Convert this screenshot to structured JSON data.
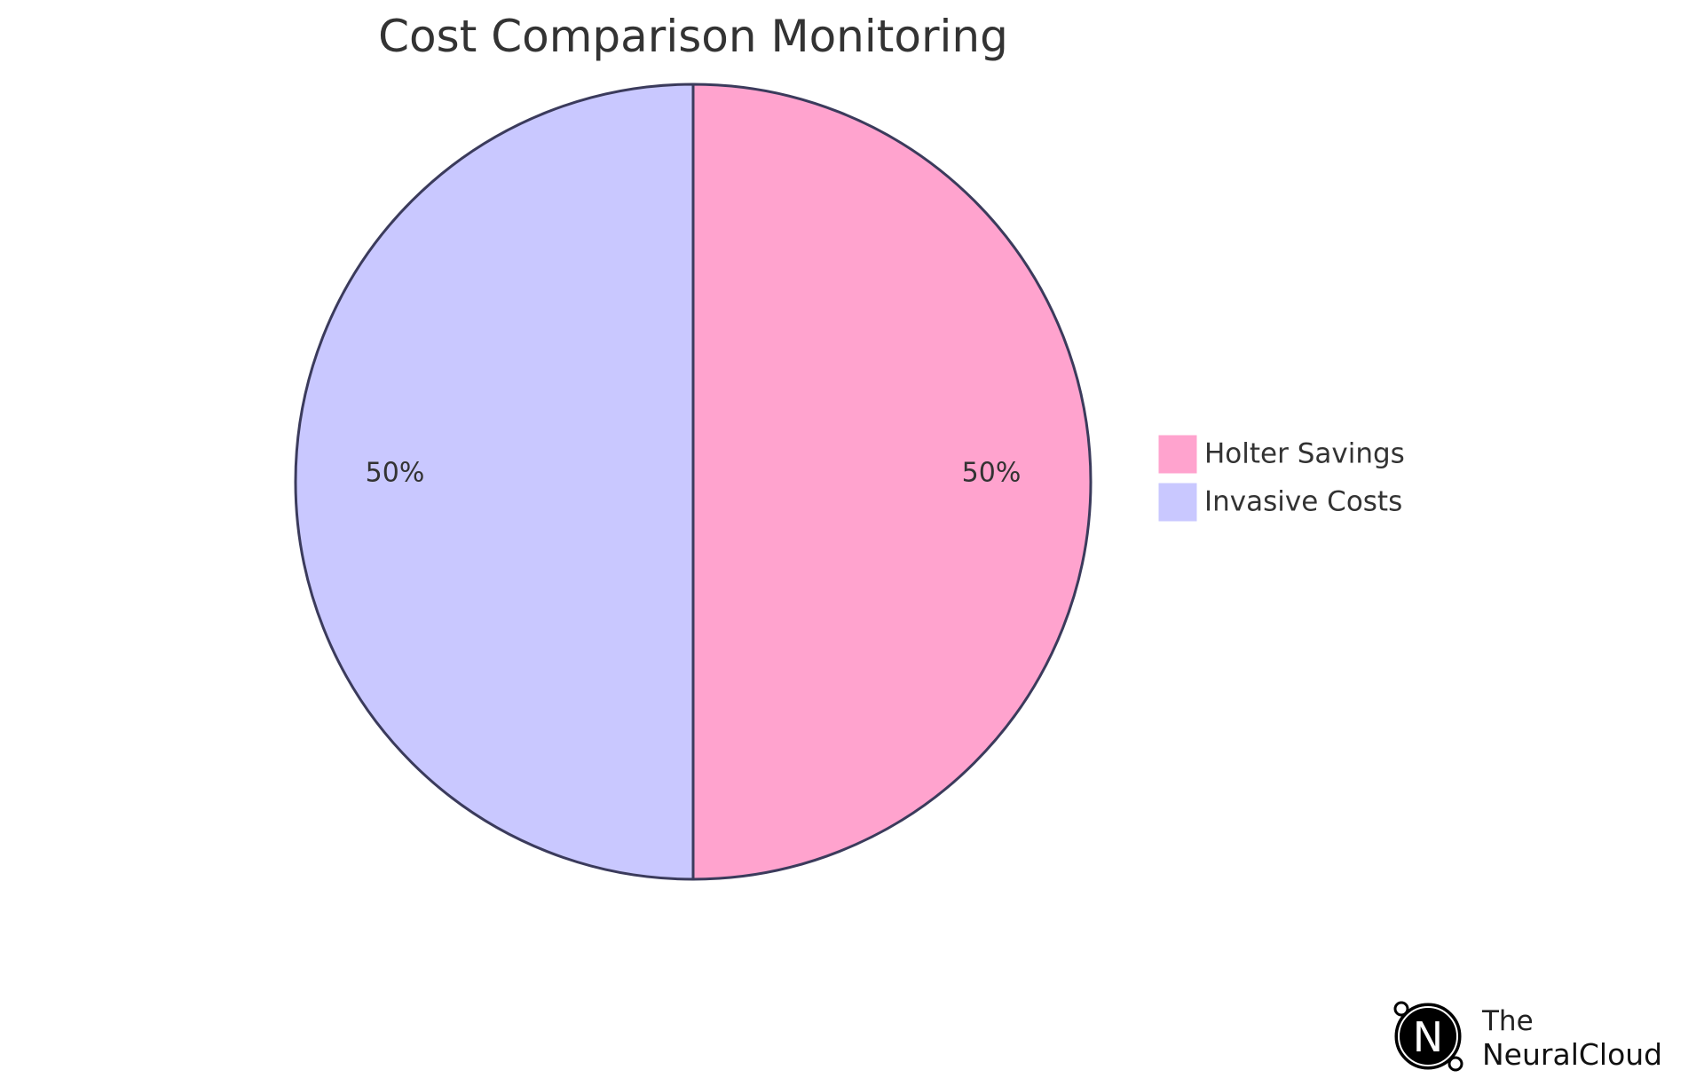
{
  "chart_data": {
    "type": "pie",
    "title": "Cost Comparison Monitoring",
    "slices": [
      {
        "name": "Holter Savings",
        "value": 50,
        "label": "50%",
        "color": "#FFA3CE"
      },
      {
        "name": "Invasive Costs",
        "value": 50,
        "label": "50%",
        "color": "#C9C8FF"
      }
    ],
    "legend_position": "right",
    "stroke_color": "#3B3B5C"
  },
  "brand": {
    "line1": "The",
    "line2": "NeuralCloud",
    "logo_letter": "N"
  }
}
